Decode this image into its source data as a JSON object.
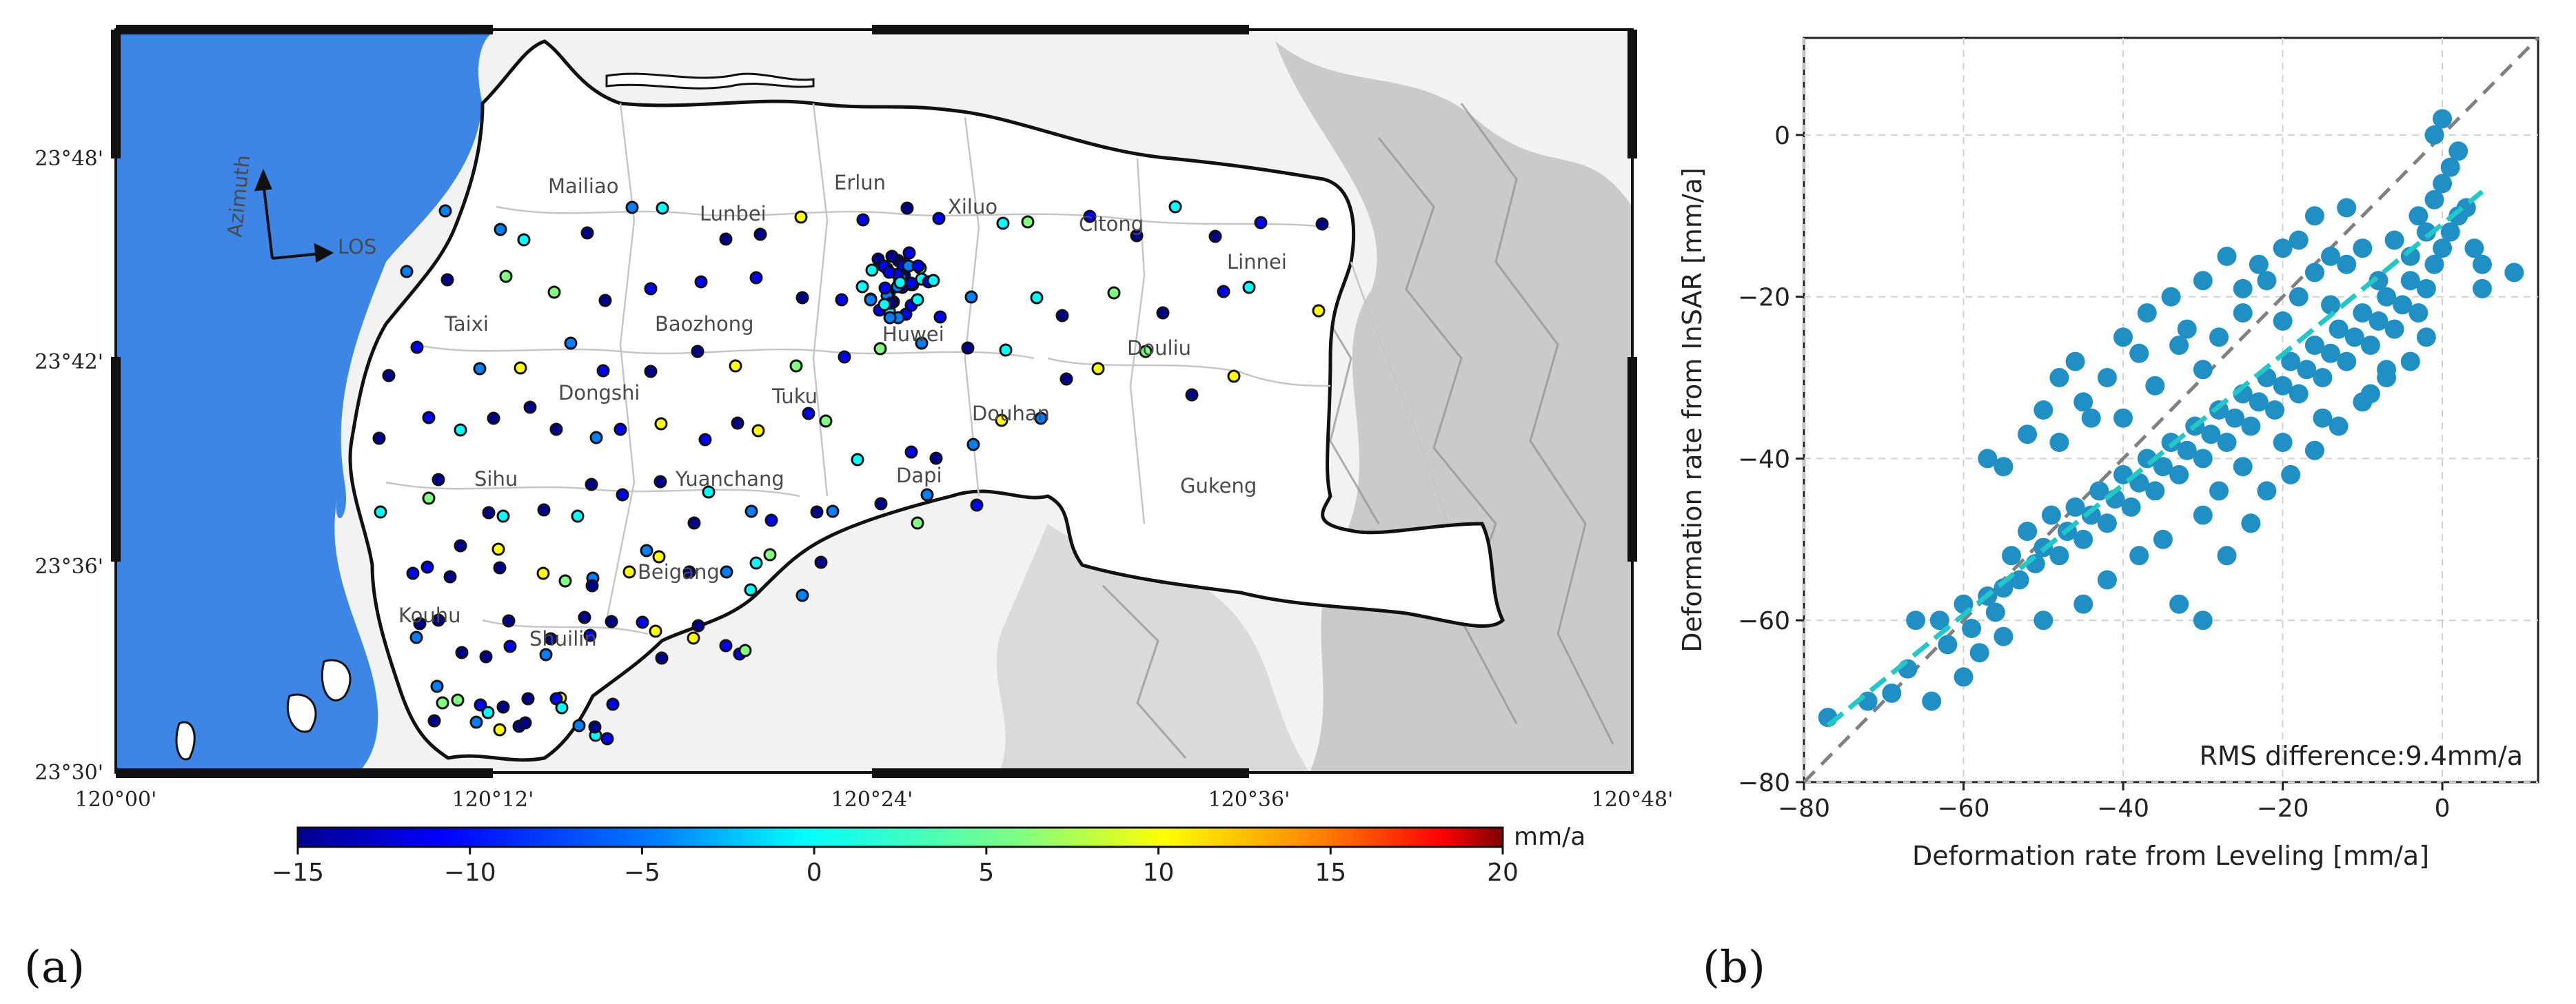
{
  "panels": {
    "a": "(a)",
    "b": "(b)"
  },
  "map": {
    "lon_ticks": [
      "120°00'",
      "120°12'",
      "120°24'",
      "120°36'",
      "120°48'"
    ],
    "lat_ticks": [
      "23°48'",
      "23°42'",
      "23°36'",
      "23°30'"
    ],
    "north_arrow": {
      "azimuth": "Azimuth",
      "los": "LOS"
    },
    "place_names": [
      "Mailiao",
      "Lunbei",
      "Erlun",
      "Xiluo",
      "Citong",
      "Linnei",
      "Taixi",
      "Baozhong",
      "Huwei",
      "Dongshi",
      "Tuku",
      "Douliu",
      "Douhan",
      "Sihu",
      "Yuanchang",
      "Dapi",
      "Gukeng",
      "Beigang",
      "Kouhu",
      "Shuilin"
    ],
    "colorbar": {
      "ticks": [
        "−15",
        "−10",
        "−5",
        "0",
        "5",
        "10",
        "15",
        "20"
      ],
      "unit": "mm/a",
      "min": -15,
      "max": 20,
      "colors": [
        "#00008f",
        "#0000ff",
        "#0080ff",
        "#00ffff",
        "#80ff80",
        "#ffff00",
        "#ff8000",
        "#ff0000",
        "#800000"
      ]
    },
    "colors": {
      "sea": "#3d86e6",
      "coast": "#111111"
    }
  },
  "chart_data": {
    "type": "scatter",
    "xlabel": "Deformation rate from Leveling [mm/a]",
    "ylabel": "Deformation rate from InSAR [mm/a]",
    "xlim": [
      -80,
      12
    ],
    "ylim": [
      -80,
      12
    ],
    "x_ticks": [
      -80,
      -60,
      -40,
      -20,
      0
    ],
    "y_ticks": [
      -80,
      -60,
      -40,
      -20,
      0
    ],
    "grid": true,
    "annotation": "RMS difference:9.4mm/a",
    "point_color": "#1f8fc4",
    "one_to_one_line_color": "#808080",
    "fit_line": {
      "color": "#22c7c7",
      "start": [
        -77,
        -73
      ],
      "end": [
        5,
        -7
      ]
    },
    "points": [
      [
        -77,
        -72
      ],
      [
        -72,
        -70
      ],
      [
        -69,
        -69
      ],
      [
        -67,
        -66
      ],
      [
        -66,
        -60
      ],
      [
        -63,
        -60
      ],
      [
        -62,
        -63
      ],
      [
        -60,
        -58
      ],
      [
        -59,
        -61
      ],
      [
        -58,
        -64
      ],
      [
        -57,
        -57
      ],
      [
        -56,
        -59
      ],
      [
        -55,
        -56
      ],
      [
        -54,
        -52
      ],
      [
        -53,
        -55
      ],
      [
        -52,
        -49
      ],
      [
        -51,
        -53
      ],
      [
        -50,
        -51
      ],
      [
        -49,
        -47
      ],
      [
        -48,
        -52
      ],
      [
        -47,
        -49
      ],
      [
        -46,
        -46
      ],
      [
        -45,
        -50
      ],
      [
        -44,
        -47
      ],
      [
        -43,
        -44
      ],
      [
        -42,
        -48
      ],
      [
        -41,
        -45
      ],
      [
        -40,
        -42
      ],
      [
        -39,
        -46
      ],
      [
        -38,
        -43
      ],
      [
        -37,
        -40
      ],
      [
        -36,
        -44
      ],
      [
        -35,
        -41
      ],
      [
        -34,
        -38
      ],
      [
        -33,
        -42
      ],
      [
        -32,
        -39
      ],
      [
        -31,
        -36
      ],
      [
        -30,
        -40
      ],
      [
        -29,
        -37
      ],
      [
        -28,
        -34
      ],
      [
        -27,
        -38
      ],
      [
        -26,
        -35
      ],
      [
        -25,
        -32
      ],
      [
        -24,
        -36
      ],
      [
        -23,
        -33
      ],
      [
        -22,
        -30
      ],
      [
        -21,
        -34
      ],
      [
        -20,
        -31
      ],
      [
        -19,
        -28
      ],
      [
        -18,
        -32
      ],
      [
        -17,
        -29
      ],
      [
        -16,
        -26
      ],
      [
        -15,
        -30
      ],
      [
        -14,
        -27
      ],
      [
        -13,
        -24
      ],
      [
        -12,
        -28
      ],
      [
        -11,
        -25
      ],
      [
        -10,
        -22
      ],
      [
        -9,
        -26
      ],
      [
        -8,
        -23
      ],
      [
        -7,
        -20
      ],
      [
        -6,
        -24
      ],
      [
        -5,
        -21
      ],
      [
        -4,
        -18
      ],
      [
        -3,
        -22
      ],
      [
        -2,
        -19
      ],
      [
        -1,
        -16
      ],
      [
        0,
        -14
      ],
      [
        1,
        -12
      ],
      [
        2,
        -10
      ],
      [
        -48,
        -38
      ],
      [
        -45,
        -33
      ],
      [
        -42,
        -30
      ],
      [
        -40,
        -35
      ],
      [
        -38,
        -27
      ],
      [
        -36,
        -31
      ],
      [
        -33,
        -26
      ],
      [
        -30,
        -29
      ],
      [
        -28,
        -25
      ],
      [
        -25,
        -22
      ],
      [
        -22,
        -18
      ],
      [
        -20,
        -23
      ],
      [
        -18,
        -20
      ],
      [
        -16,
        -17
      ],
      [
        -14,
        -21
      ],
      [
        -12,
        -16
      ],
      [
        -10,
        -14
      ],
      [
        -8,
        -18
      ],
      [
        -6,
        -13
      ],
      [
        -4,
        -15
      ],
      [
        -3,
        -10
      ],
      [
        -2,
        -12
      ],
      [
        -1,
        -8
      ],
      [
        0,
        -6
      ],
      [
        1,
        -4
      ],
      [
        2,
        -2
      ],
      [
        -1,
        0
      ],
      [
        0,
        2
      ],
      [
        3,
        -9
      ],
      [
        4,
        -14
      ],
      [
        5,
        -16
      ],
      [
        9,
        -17
      ],
      [
        5,
        -19
      ],
      [
        -2,
        -25
      ],
      [
        -4,
        -28
      ],
      [
        -7,
        -30
      ],
      [
        -9,
        -32
      ],
      [
        -15,
        -35
      ],
      [
        -20,
        -38
      ],
      [
        -25,
        -41
      ],
      [
        -28,
        -44
      ],
      [
        -30,
        -47
      ],
      [
        -35,
        -50
      ],
      [
        -38,
        -52
      ],
      [
        -42,
        -55
      ],
      [
        -45,
        -58
      ],
      [
        -50,
        -60
      ],
      [
        -55,
        -62
      ],
      [
        -60,
        -67
      ],
      [
        -64,
        -70
      ],
      [
        -57,
        -40
      ],
      [
        -55,
        -41
      ],
      [
        -52,
        -37
      ],
      [
        -50,
        -34
      ],
      [
        -48,
        -30
      ],
      [
        -46,
        -28
      ],
      [
        -44,
        -35
      ],
      [
        -40,
        -25
      ],
      [
        -37,
        -22
      ],
      [
        -34,
        -20
      ],
      [
        -32,
        -24
      ],
      [
        -30,
        -18
      ],
      [
        -27,
        -15
      ],
      [
        -25,
        -19
      ],
      [
        -23,
        -16
      ],
      [
        -20,
        -14
      ],
      [
        -18,
        -13
      ],
      [
        -16,
        -10
      ],
      [
        -14,
        -15
      ],
      [
        -12,
        -9
      ],
      [
        -33,
        -58
      ],
      [
        -30,
        -60
      ],
      [
        -27,
        -52
      ],
      [
        -24,
        -48
      ],
      [
        -22,
        -44
      ],
      [
        -19,
        -42
      ],
      [
        -16,
        -39
      ],
      [
        -13,
        -36
      ],
      [
        -10,
        -33
      ],
      [
        -7,
        -29
      ]
    ]
  }
}
